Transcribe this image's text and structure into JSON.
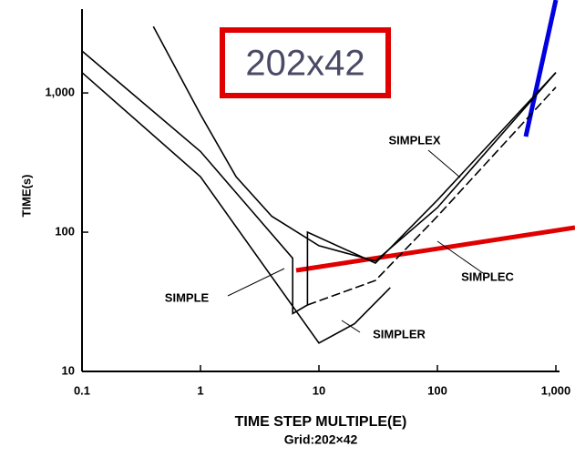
{
  "chart_data": {
    "type": "line",
    "xlabel": "TIME STEP MULTIPLE(E)",
    "subtitle": "Grid:202×42",
    "ylabel": "TIME(s)",
    "highlight": "202x42",
    "xscale": "log",
    "yscale": "log",
    "xlim": [
      0.1,
      1000
    ],
    "ylim": [
      10,
      4000
    ],
    "xticks": [
      0.1,
      1,
      10,
      100,
      {
        "value": 1000,
        "label": "1,000"
      }
    ],
    "yticks": [
      10,
      100,
      {
        "value": 1000,
        "label": "1,000"
      }
    ],
    "series": [
      {
        "name": "SIMPLEX",
        "color": "#000000",
        "x": [
          0.4,
          1,
          2,
          4,
          10,
          30,
          100,
          1000
        ],
        "values": [
          3000,
          700,
          250,
          130,
          80,
          62,
          150,
          1400
        ]
      },
      {
        "name": "SIMPLE",
        "color": "#000000",
        "x": [
          0.1,
          1,
          6,
          6,
          8,
          8,
          30,
          100,
          1000
        ],
        "values": [
          2000,
          380,
          65,
          26,
          30,
          100,
          60,
          170,
          1400
        ]
      },
      {
        "name": "SIMPLER",
        "color": "#000000",
        "x": [
          0.1,
          1,
          10,
          20,
          40
        ],
        "values": [
          1400,
          250,
          16,
          22,
          40
        ]
      },
      {
        "name": "SIMPLEC",
        "color": "#000000",
        "x": [
          8,
          30,
          100,
          1000
        ],
        "values": [
          30,
          45,
          130,
          1100
        ]
      }
    ]
  }
}
